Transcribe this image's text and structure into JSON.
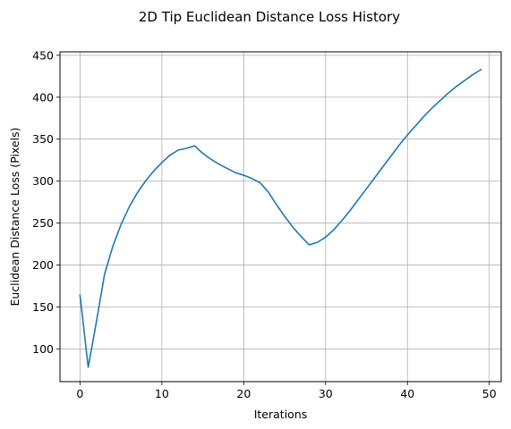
{
  "chart_data": {
    "type": "line",
    "title": "2D Tip Euclidean Distance Loss History",
    "xlabel": "Iterations",
    "ylabel": "Euclidean Distance Loss (Pixels)",
    "xlim": [
      -2.45,
      51.45
    ],
    "ylim": [
      60.9,
      454.1
    ],
    "xticks": [
      0,
      10,
      20,
      30,
      40,
      50
    ],
    "yticks": [
      100,
      150,
      200,
      250,
      300,
      350,
      400,
      450
    ],
    "grid": true,
    "line_color": "#1f77b4",
    "series": [
      {
        "x": [
          0,
          1,
          2,
          3,
          4,
          5,
          6,
          7,
          8,
          9,
          10,
          11,
          12,
          13,
          14,
          15,
          16,
          17,
          18,
          19,
          20,
          21,
          22,
          23,
          24,
          25,
          26,
          27,
          28,
          29,
          30,
          31,
          32,
          33,
          34,
          35,
          36,
          37,
          38,
          39,
          40,
          41,
          42,
          43,
          44,
          45,
          46,
          47,
          48,
          49
        ],
        "values": [
          164,
          78,
          132,
          189,
          222,
          248,
          269,
          286,
          300,
          312,
          322,
          331,
          337,
          339,
          342,
          333,
          326,
          320,
          315,
          310,
          307,
          303,
          298,
          287,
          272,
          258,
          245,
          234,
          224,
          227,
          233,
          242,
          253,
          265,
          278,
          291,
          304,
          317,
          330,
          343,
          355,
          366,
          377,
          387,
          396,
          405,
          413,
          420,
          427,
          433
        ]
      }
    ]
  }
}
